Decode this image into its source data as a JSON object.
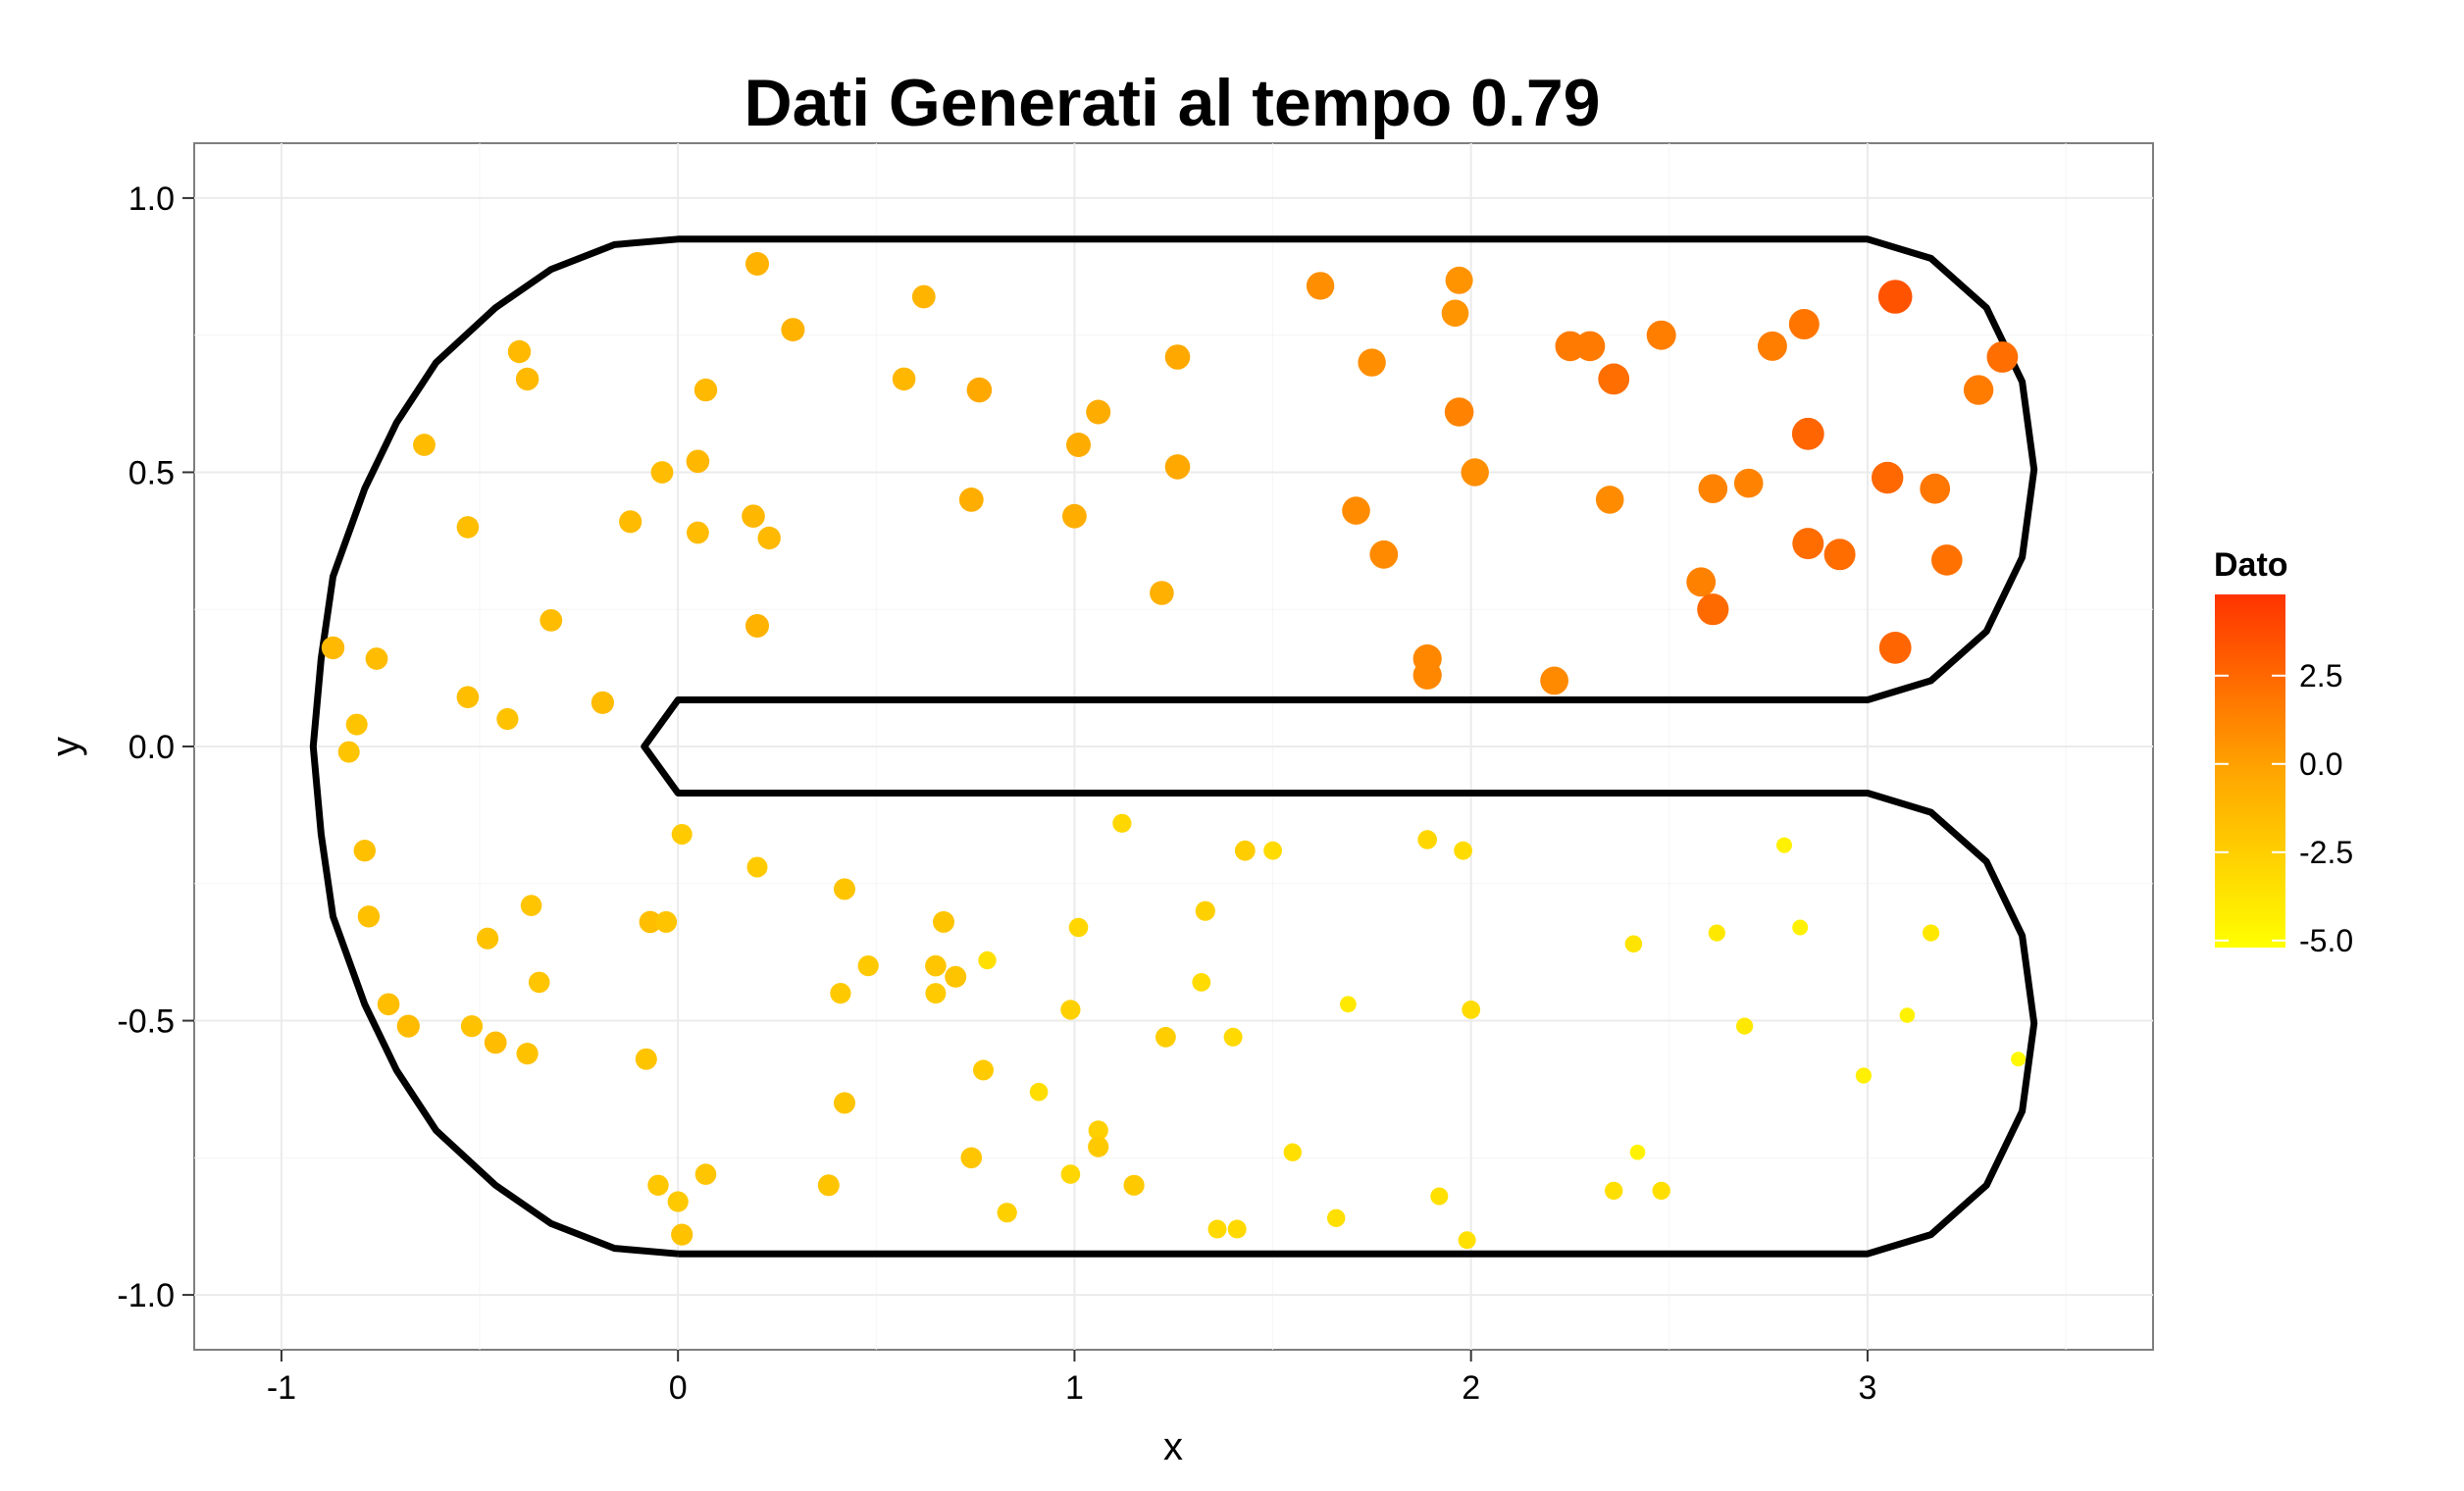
{
  "chart_data": {
    "type": "scatter",
    "title": "Dati Generati al tempo 0.79",
    "xlabel": "x",
    "ylabel": "y",
    "xlim": [
      -1.22,
      3.72
    ],
    "ylim": [
      -1.1,
      1.1
    ],
    "x_ticks": [
      -1,
      0,
      1,
      2,
      3
    ],
    "x_tick_labels": [
      "-1",
      "0",
      "1",
      "2",
      "3"
    ],
    "y_ticks": [
      -1.0,
      -0.5,
      0.0,
      0.5,
      1.0
    ],
    "y_tick_labels": [
      "-1.0",
      "-0.5",
      "0.0",
      "0.5",
      "1.0"
    ],
    "grid": true,
    "legend": {
      "title": "Dato",
      "position": "right",
      "range": [
        -5.2,
        4.8
      ],
      "breaks": [
        2.5,
        0.0,
        -2.5,
        -5.0
      ],
      "break_labels": [
        "2.5",
        "0.0",
        "-2.5",
        "-5.0"
      ],
      "color_low": "#FFFF00",
      "color_high": "#FF3300"
    },
    "boundary": {
      "x": [
        0,
        3,
        3.16,
        3.3,
        3.39,
        3.42,
        3.39,
        3.3,
        3.16,
        3,
        0,
        -0.085,
        0,
        3,
        3.16,
        3.3,
        3.39,
        3.42,
        3.39,
        3.3,
        3.16,
        3,
        0,
        -0.16,
        -0.32,
        -0.46,
        -0.61,
        -0.71,
        -0.79,
        -0.87,
        -0.9,
        -0.92,
        -0.9,
        -0.87,
        -0.79,
        -0.71,
        -0.61,
        -0.46,
        -0.32,
        -0.16,
        0
      ],
      "y": [
        -0.925,
        -0.925,
        -0.89,
        -0.8,
        -0.665,
        -0.505,
        -0.345,
        -0.21,
        -0.12,
        -0.085,
        -0.085,
        0,
        0.085,
        0.085,
        0.12,
        0.21,
        0.345,
        0.505,
        0.665,
        0.8,
        0.89,
        0.925,
        0.925,
        0.915,
        0.87,
        0.8,
        0.7,
        0.59,
        0.47,
        0.31,
        0.16,
        0,
        -0.16,
        -0.31,
        -0.47,
        -0.59,
        -0.7,
        -0.8,
        -0.87,
        -0.915,
        -0.925
      ]
    },
    "points": [
      [
        0.2,
        0.88,
        -1.0
      ],
      [
        0.62,
        0.82,
        -1.1
      ],
      [
        0.29,
        0.76,
        -1.0
      ],
      [
        -0.4,
        0.72,
        -1.3
      ],
      [
        -0.38,
        0.67,
        -1.3
      ],
      [
        0.57,
        0.67,
        -1.2
      ],
      [
        0.07,
        0.65,
        -1.3
      ],
      [
        0.76,
        0.65,
        -0.4
      ],
      [
        -0.64,
        0.55,
        -1.5
      ],
      [
        0.05,
        0.52,
        -1.2
      ],
      [
        -0.04,
        0.5,
        -1.5
      ],
      [
        -0.53,
        0.4,
        -1.6
      ],
      [
        -0.12,
        0.41,
        -1.4
      ],
      [
        0.05,
        0.39,
        -1.5
      ],
      [
        0.19,
        0.42,
        -1.2
      ],
      [
        0.23,
        0.38,
        -1.3
      ],
      [
        0.2,
        0.22,
        -1.0
      ],
      [
        -0.32,
        0.23,
        -1.5
      ],
      [
        0.74,
        0.45,
        -0.7
      ],
      [
        1.01,
        0.55,
        -0.6
      ],
      [
        1.06,
        0.61,
        -0.6
      ],
      [
        1.0,
        0.42,
        -0.7
      ],
      [
        1.26,
        0.71,
        -0.4
      ],
      [
        1.26,
        0.51,
        -0.4
      ],
      [
        1.22,
        0.28,
        -0.8
      ],
      [
        1.62,
        0.84,
        0.8
      ],
      [
        1.97,
        0.85,
        0.6
      ],
      [
        1.96,
        0.79,
        0.5
      ],
      [
        1.75,
        0.7,
        0.8
      ],
      [
        1.97,
        0.61,
        1.3
      ],
      [
        2.01,
        0.5,
        0.8
      ],
      [
        1.71,
        0.43,
        0.9
      ],
      [
        1.78,
        0.35,
        1.0
      ],
      [
        1.89,
        0.16,
        1.1
      ],
      [
        1.89,
        0.13,
        1.1
      ],
      [
        2.21,
        0.12,
        1.0
      ],
      [
        2.25,
        0.73,
        1.7
      ],
      [
        2.3,
        0.73,
        1.7
      ],
      [
        2.36,
        0.67,
        2.2
      ],
      [
        2.48,
        0.75,
        1.5
      ],
      [
        2.35,
        0.45,
        0.9
      ],
      [
        2.61,
        0.47,
        1.3
      ],
      [
        2.7,
        0.48,
        1.3
      ],
      [
        2.76,
        0.73,
        1.5
      ],
      [
        2.84,
        0.77,
        1.9
      ],
      [
        2.85,
        0.57,
        2.6
      ],
      [
        2.85,
        0.37,
        2.3
      ],
      [
        2.93,
        0.35,
        2.3
      ],
      [
        2.58,
        0.3,
        1.4
      ],
      [
        2.61,
        0.25,
        2.4
      ],
      [
        3.07,
        0.82,
        3.4
      ],
      [
        3.34,
        0.71,
        2.2
      ],
      [
        3.28,
        0.65,
        1.6
      ],
      [
        3.05,
        0.49,
        2.5
      ],
      [
        3.17,
        0.47,
        1.8
      ],
      [
        3.2,
        0.34,
        2.1
      ],
      [
        3.07,
        0.18,
        2.6
      ],
      [
        -0.87,
        0.18,
        -1.3
      ],
      [
        -0.76,
        0.16,
        -1.5
      ],
      [
        -0.53,
        0.09,
        -1.6
      ],
      [
        -0.43,
        0.05,
        -1.8
      ],
      [
        -0.19,
        0.08,
        -1.4
      ],
      [
        -0.81,
        0.04,
        -1.9
      ],
      [
        -0.83,
        -0.01,
        -1.9
      ],
      [
        -0.79,
        -0.19,
        -1.7
      ],
      [
        -0.78,
        -0.31,
        -1.7
      ],
      [
        -0.48,
        -0.35,
        -1.8
      ],
      [
        -0.37,
        -0.29,
        -2.0
      ],
      [
        -0.35,
        -0.43,
        -2.0
      ],
      [
        -0.73,
        -0.47,
        -1.6
      ],
      [
        -0.68,
        -0.51,
        -1.4
      ],
      [
        -0.52,
        -0.51,
        -1.8
      ],
      [
        -0.46,
        -0.54,
        -1.5
      ],
      [
        -0.38,
        -0.56,
        -1.8
      ],
      [
        -0.08,
        -0.57,
        -1.9
      ],
      [
        -0.07,
        -0.32,
        -1.6
      ],
      [
        -0.03,
        -0.32,
        -1.9
      ],
      [
        0.01,
        -0.16,
        -2.3
      ],
      [
        0.2,
        -0.22,
        -2.3
      ],
      [
        0.42,
        -0.26,
        -1.9
      ],
      [
        0.41,
        -0.45,
        -2.2
      ],
      [
        0.48,
        -0.4,
        -2.2
      ],
      [
        0.42,
        -0.65,
        -1.9
      ],
      [
        0.38,
        -0.8,
        -1.9
      ],
      [
        -0.05,
        -0.8,
        -2.1
      ],
      [
        0.07,
        -0.78,
        -2.0
      ],
      [
        0.0,
        -0.83,
        -2.2
      ],
      [
        0.01,
        -0.89,
        -1.8
      ],
      [
        0.67,
        -0.32,
        -1.9
      ],
      [
        0.65,
        -0.4,
        -2.0
      ],
      [
        0.65,
        -0.45,
        -2.3
      ],
      [
        0.7,
        -0.42,
        -1.9
      ],
      [
        0.78,
        -0.39,
        -3.4
      ],
      [
        0.77,
        -0.59,
        -2.3
      ],
      [
        0.74,
        -0.75,
        -2.0
      ],
      [
        0.83,
        -0.85,
        -2.6
      ],
      [
        0.91,
        -0.63,
        -3.3
      ],
      [
        1.01,
        -0.33,
        -2.9
      ],
      [
        0.99,
        -0.48,
        -2.6
      ],
      [
        1.06,
        -0.7,
        -2.6
      ],
      [
        1.06,
        -0.73,
        -2.2
      ],
      [
        0.99,
        -0.78,
        -2.9
      ],
      [
        1.15,
        -0.8,
        -2.2
      ],
      [
        1.12,
        -0.14,
        -3.0
      ],
      [
        1.23,
        -0.53,
        -2.4
      ],
      [
        1.33,
        -0.3,
        -2.6
      ],
      [
        1.32,
        -0.43,
        -3.2
      ],
      [
        1.4,
        -0.53,
        -3.1
      ],
      [
        1.43,
        -0.19,
        -2.4
      ],
      [
        1.5,
        -0.19,
        -3.2
      ],
      [
        1.55,
        -0.74,
        -3.4
      ],
      [
        1.66,
        -0.86,
        -3.4
      ],
      [
        1.69,
        -0.47,
        -4.0
      ],
      [
        1.36,
        -0.88,
        -3.1
      ],
      [
        1.41,
        -0.88,
        -3.1
      ],
      [
        1.89,
        -0.17,
        -2.9
      ],
      [
        1.98,
        -0.19,
        -3.2
      ],
      [
        2.0,
        -0.48,
        -3.2
      ],
      [
        1.92,
        -0.82,
        -3.5
      ],
      [
        1.99,
        -0.9,
        -3.5
      ],
      [
        2.41,
        -0.36,
        -3.7
      ],
      [
        2.42,
        -0.74,
        -4.5
      ],
      [
        2.36,
        -0.81,
        -3.4
      ],
      [
        2.48,
        -0.81,
        -3.4
      ],
      [
        2.62,
        -0.34,
        -3.9
      ],
      [
        2.69,
        -0.51,
        -3.9
      ],
      [
        2.79,
        -0.18,
        -4.4
      ],
      [
        2.83,
        -0.33,
        -4.4
      ],
      [
        2.99,
        -0.6,
        -4.3
      ],
      [
        3.1,
        -0.49,
        -4.5
      ],
      [
        3.16,
        -0.34,
        -3.9
      ],
      [
        3.38,
        -0.57,
        -4.8
      ]
    ]
  }
}
